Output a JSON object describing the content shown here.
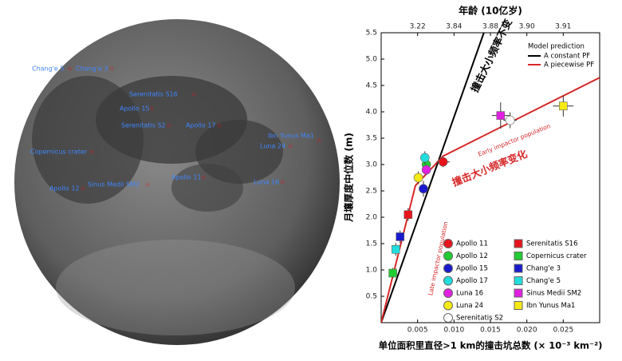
{
  "moon_labels": [
    "Chang'e 5",
    "Chang'e 3",
    "Serenitatis S16",
    "Apollo 15",
    "Serenitatis S2",
    "Apollo 17",
    "Ibn Yunus Ma1",
    "Luna 24",
    "Copernicus crater",
    "Apollo 11",
    "Apollo 12",
    "Sinus Medii SM2",
    "Luna 16"
  ],
  "chart_data": {
    "type": "scatter",
    "x_title": "单位面积里直径>1 km的撞击坑总数 (× 10⁻³ km⁻²)",
    "x2_title": "年龄 (10亿岁)",
    "y_title": "月壤厚度中位数 (m)",
    "xlim": [
      0,
      0.03
    ],
    "ylim": [
      0,
      5.5
    ],
    "xticks": [
      0.005,
      {
        "value": 0.01,
        "label": "0.010"
      },
      0.015,
      {
        "value": 0.02,
        "label": "0.020"
      },
      0.025
    ],
    "x2ticks": [
      {
        "value": 0.005,
        "label": "3.22"
      },
      {
        "value": 0.01,
        "label": "3.84"
      },
      {
        "value": 0.015,
        "label": "3.88"
      },
      {
        "value": 0.02,
        "label": "3.90"
      },
      {
        "value": 0.025,
        "label": "3.91"
      }
    ],
    "yticks": [
      0.5,
      {
        "value": 1,
        "label": "1.0"
      },
      1.5,
      {
        "value": 2,
        "label": "2.0"
      },
      2.5,
      {
        "value": 3,
        "label": "3.0"
      },
      3.5,
      {
        "value": 4,
        "label": "4.0"
      },
      4.5,
      {
        "value": 5,
        "label": "5.0"
      },
      5.5
    ],
    "model_legend_title": "Model prediction",
    "lines": [
      {
        "name": "A constant PF",
        "color": "#000000",
        "x": [
          0,
          0.0141
        ],
        "values": [
          0,
          5.5
        ]
      },
      {
        "name": "A piecewise PF",
        "color": "#d62728",
        "x": [
          0,
          0.0047,
          0.0085,
          0.03
        ],
        "values": [
          0,
          2.6,
          3.16,
          4.65
        ]
      }
    ],
    "annotations": [
      "撞击大小频率不变",
      "撞击大小频率变化",
      "Early impactor population",
      "Late impactor population"
    ],
    "series": [
      {
        "name": "Apollo 11",
        "color": "#e8141c",
        "marker": "circle",
        "x": [
          0.0085
        ],
        "values": [
          3.05
        ],
        "xerr": [
          0.0009
        ],
        "yerr": [
          0.1
        ]
      },
      {
        "name": "Apollo 12",
        "color": "#22cc33",
        "marker": "circle",
        "x": [
          0.0062
        ],
        "values": [
          3.0
        ],
        "xerr": [
          0.0006
        ],
        "yerr": [
          0.12
        ]
      },
      {
        "name": "Apollo 15",
        "color": "#1a1acc",
        "marker": "circle",
        "x": [
          0.0058
        ],
        "values": [
          2.54
        ],
        "xerr": [
          0.0006
        ],
        "yerr": [
          0.15
        ]
      },
      {
        "name": "Apollo 17",
        "color": "#22dddd",
        "marker": "circle",
        "x": [
          0.006
        ],
        "values": [
          3.13
        ],
        "xerr": [
          0.0006
        ],
        "yerr": [
          0.12
        ]
      },
      {
        "name": "Luna 16",
        "color": "#e020e0",
        "marker": "circle",
        "x": [
          0.0062
        ],
        "values": [
          2.9
        ],
        "xerr": [
          0.0005
        ],
        "yerr": [
          0.1
        ]
      },
      {
        "name": "Luna 24",
        "color": "#f5ea14",
        "marker": "circle",
        "x": [
          0.0051
        ],
        "values": [
          2.75
        ],
        "xerr": [
          0.0005
        ],
        "yerr": [
          0.12
        ]
      },
      {
        "name": "Serenitatis S2",
        "color": "#ffffff",
        "marker": "circle",
        "x": [
          0.0177
        ],
        "values": [
          3.84
        ],
        "xerr": [
          0.0009
        ],
        "yerr": [
          0.15
        ]
      },
      {
        "name": "Serenitatis S16",
        "color": "#e8141c",
        "marker": "square",
        "x": [
          0.0037
        ],
        "values": [
          2.05
        ],
        "xerr": [
          0.0005
        ],
        "yerr": [
          0.12
        ]
      },
      {
        "name": "Copernicus crater",
        "color": "#22cc33",
        "marker": "square",
        "x": [
          0.0016
        ],
        "values": [
          0.94
        ],
        "xerr": [
          0.0004
        ],
        "yerr": [
          0.1
        ]
      },
      {
        "name": "Chang'e 3",
        "color": "#1a1acc",
        "marker": "square",
        "x": [
          0.0026
        ],
        "values": [
          1.63
        ],
        "xerr": [
          0.0004
        ],
        "yerr": [
          0.12
        ]
      },
      {
        "name": "Chang'e 5",
        "color": "#22dddd",
        "marker": "square",
        "x": [
          0.002
        ],
        "values": [
          1.39
        ],
        "xerr": [
          0.0004
        ],
        "yerr": [
          0.12
        ]
      },
      {
        "name": "Sinus Medii SM2",
        "color": "#e020e0",
        "marker": "square",
        "x": [
          0.0164
        ],
        "values": [
          3.93
        ],
        "xerr": [
          0.0012
        ],
        "yerr": [
          0.25
        ]
      },
      {
        "name": "Ibn Yunus Ma1",
        "color": "#f5ea14",
        "marker": "square",
        "x": [
          0.025
        ],
        "values": [
          4.11
        ],
        "xerr": [
          0.0014
        ],
        "yerr": [
          0.2
        ]
      }
    ]
  }
}
